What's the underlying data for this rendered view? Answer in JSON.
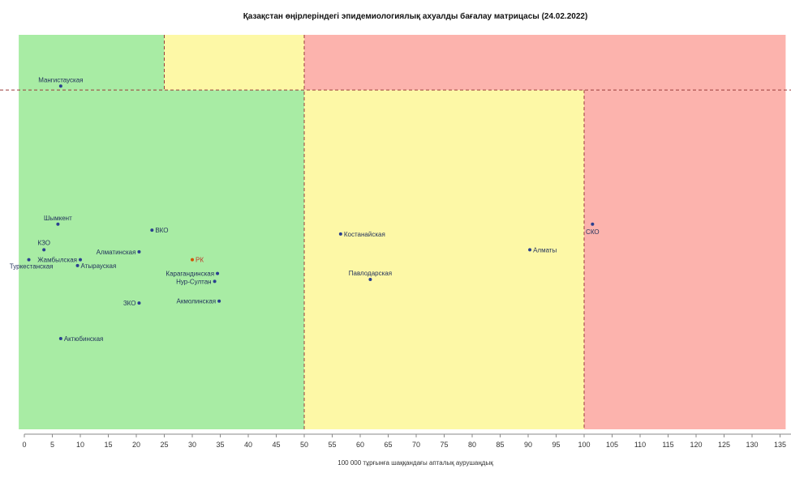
{
  "chart_data": {
    "type": "scatter",
    "title": "Қазақстан өңірлеріндегі эпидемиологиялық ахуалды бағалау матрицасы  (24.02.2022)",
    "xlabel": "100 000 тұрғынға шаққандағы апталық аурушаңдық",
    "ylabel": "",
    "xlim": [
      -1,
      136
    ],
    "xticks": [
      0,
      5,
      10,
      15,
      20,
      25,
      30,
      35,
      40,
      45,
      50,
      55,
      60,
      65,
      70,
      75,
      80,
      85,
      90,
      95,
      100,
      105,
      110,
      115,
      120,
      125,
      130,
      135
    ],
    "ylim": [
      0,
      100
    ],
    "grid": false,
    "zones": [
      {
        "x": [
          -1,
          50
        ],
        "y": [
          0,
          86
        ],
        "color": "#a8eca4"
      },
      {
        "x": [
          50,
          100
        ],
        "y": [
          0,
          86
        ],
        "color": "#fdf8a6"
      },
      {
        "x": [
          100,
          136
        ],
        "y": [
          0,
          86
        ],
        "color": "#fcb3ad"
      },
      {
        "x": [
          -1,
          25
        ],
        "y": [
          86,
          100
        ],
        "color": "#a8eca4"
      },
      {
        "x": [
          25,
          50
        ],
        "y": [
          86,
          100
        ],
        "color": "#fdf8a6"
      },
      {
        "x": [
          50,
          136
        ],
        "y": [
          86,
          100
        ],
        "color": "#fcb3ad"
      }
    ],
    "threshold_lines": {
      "x": [
        25,
        50,
        100
      ],
      "y": [
        86
      ]
    },
    "points": [
      {
        "name": "Мангистауская",
        "x": 6.5,
        "y": 87,
        "label_pos": "above"
      },
      {
        "name": "Шымкент",
        "x": 6,
        "y": 52,
        "label_pos": "above"
      },
      {
        "name": "ВКО",
        "x": 22.8,
        "y": 50.5,
        "label_pos": "right"
      },
      {
        "name": "КЗО",
        "x": 3.5,
        "y": 45.5,
        "label_pos": "above-left"
      },
      {
        "name": "Алматинская",
        "x": 20.5,
        "y": 45,
        "label_pos": "left"
      },
      {
        "name": "Жамбылская",
        "x": 10,
        "y": 43,
        "label_pos": "left"
      },
      {
        "name": "РК",
        "x": 30,
        "y": 43,
        "label_pos": "right"
      },
      {
        "name": "Туркестанская",
        "x": 0.8,
        "y": 43,
        "label_pos": "below-left"
      },
      {
        "name": "Атырауская",
        "x": 9.5,
        "y": 41.5,
        "label_pos": "right"
      },
      {
        "name": "Карагандинская",
        "x": 34.5,
        "y": 39.5,
        "label_pos": "left"
      },
      {
        "name": "Нур-Султан",
        "x": 34,
        "y": 37.5,
        "label_pos": "left"
      },
      {
        "name": "Акмолинская",
        "x": 34.8,
        "y": 32.5,
        "label_pos": "left"
      },
      {
        "name": "ЗКО",
        "x": 20.5,
        "y": 32,
        "label_pos": "left"
      },
      {
        "name": "Актюбинская",
        "x": 6.5,
        "y": 23,
        "label_pos": "right"
      },
      {
        "name": "Костанайская",
        "x": 56.5,
        "y": 49.5,
        "label_pos": "right"
      },
      {
        "name": "Павлодарская",
        "x": 61.8,
        "y": 38,
        "label_pos": "above"
      },
      {
        "name": "Алматы",
        "x": 90.3,
        "y": 45.5,
        "label_pos": "right"
      },
      {
        "name": "СКО",
        "x": 101.5,
        "y": 52,
        "label_pos": "below"
      }
    ],
    "highlight": "РК",
    "colors": {
      "point": "#2a3f8f",
      "highlight": "#d35400",
      "threshold": "#9a3b3b"
    }
  }
}
